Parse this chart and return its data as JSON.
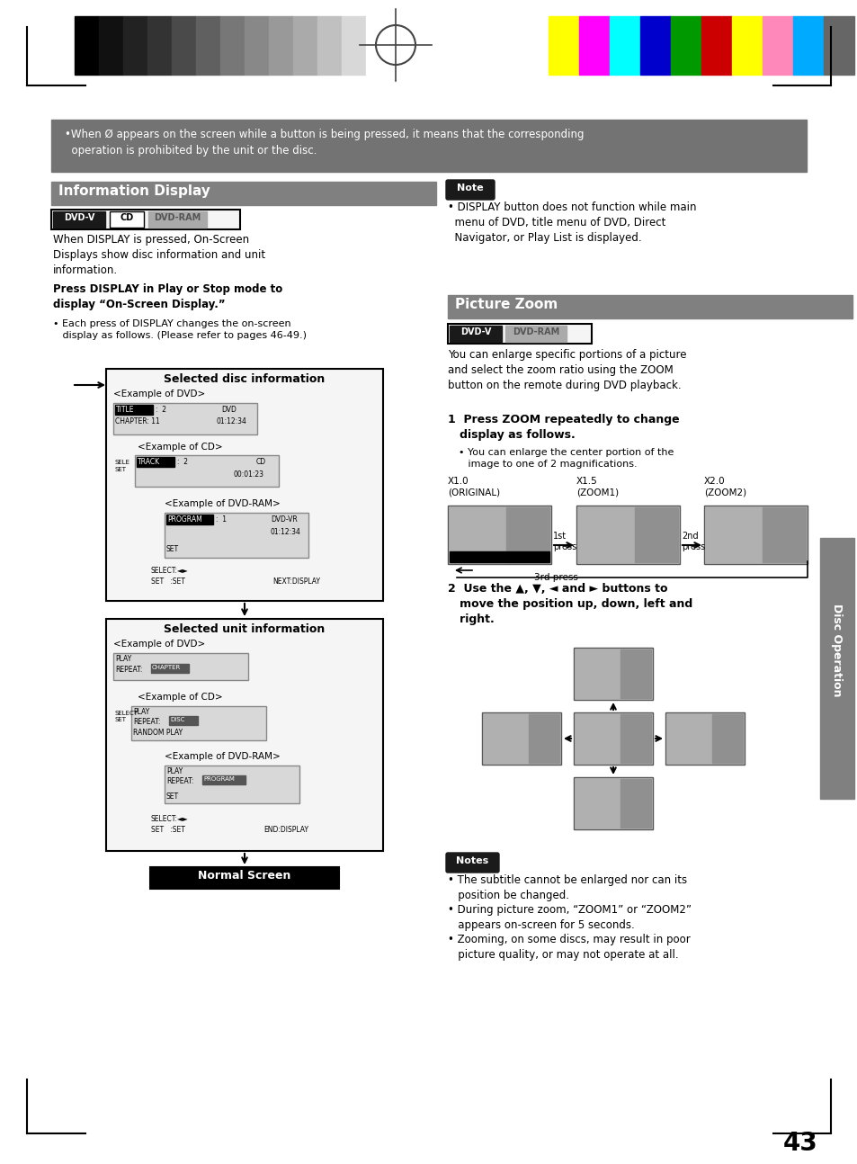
{
  "page_bg": "#ffffff",
  "page_num": "43",
  "top_banner_text": "•When Ø appears on the screen while a button is being pressed, it means that the corresponding\n  operation is prohibited by the unit or the disc.",
  "top_banner_bg": "#6b6b6b",
  "info_display_title": "Information Display",
  "info_display_bg": "#808080",
  "body_text1": "When DISPLAY is pressed, On-Screen\nDisplays show disc information and unit\ninformation.",
  "bold_heading": "Press DISPLAY in Play or Stop mode to\ndisplay “On-Screen Display.”",
  "bullet_text1": "• Each press of DISPLAY changes the on-screen\n   display as follows. (Please refer to pages 46-49.)",
  "disc_info_box_title": "Selected disc information",
  "unit_info_box_title": "Selected unit information",
  "normal_screen_title": "Normal Screen",
  "note_text": "• DISPLAY button does not function while main\n  menu of DVD, title menu of DVD, Direct\n  Navigator, or Play List is displayed.",
  "picture_zoom_title": "Picture Zoom",
  "zoom_desc": "You can enlarge specific portions of a picture\nand select the zoom ratio using the ZOOM\nbutton on the remote during DVD playback.",
  "zoom_step1_bold": "1  Press ZOOM repeatedly to change\n   display as follows.",
  "zoom_step1_bullet": "• You can enlarge the center portion of the\n   image to one of 2 magnifications.",
  "zoom_labels": [
    "X1.0\n(ORIGINAL)",
    "X1.5\n(ZOOM1)",
    "X2.0\n(ZOOM2)"
  ],
  "zoom_step2_bold": "2  Use the ▲, ▼, ◄ and ► buttons to\n   move the position up, down, left and\n   right.",
  "disc_op_sidebar_text": "Disc Operation",
  "notes_text1": "• The subtitle cannot be enlarged nor can its\n   position be changed.",
  "notes_text2": "• During picture zoom, “ZOOM1” or “ZOOM2”\n   appears on-screen for 5 seconds.",
  "notes_text3": "• Zooming, on some discs, may result in poor\n   picture quality, or may not operate at all.",
  "color_bar_colors_left": [
    "#000000",
    "#111111",
    "#222222",
    "#333333",
    "#4a4a4a",
    "#606060",
    "#777777",
    "#888888",
    "#999999",
    "#aaaaaa",
    "#c0c0c0",
    "#d8d8d8",
    "#ffffff"
  ],
  "color_bar_colors_right": [
    "#ffff00",
    "#ff00ff",
    "#00ffff",
    "#0000cc",
    "#009900",
    "#cc0000",
    "#ffff00",
    "#ff88bb",
    "#00aaff",
    "#666666"
  ]
}
